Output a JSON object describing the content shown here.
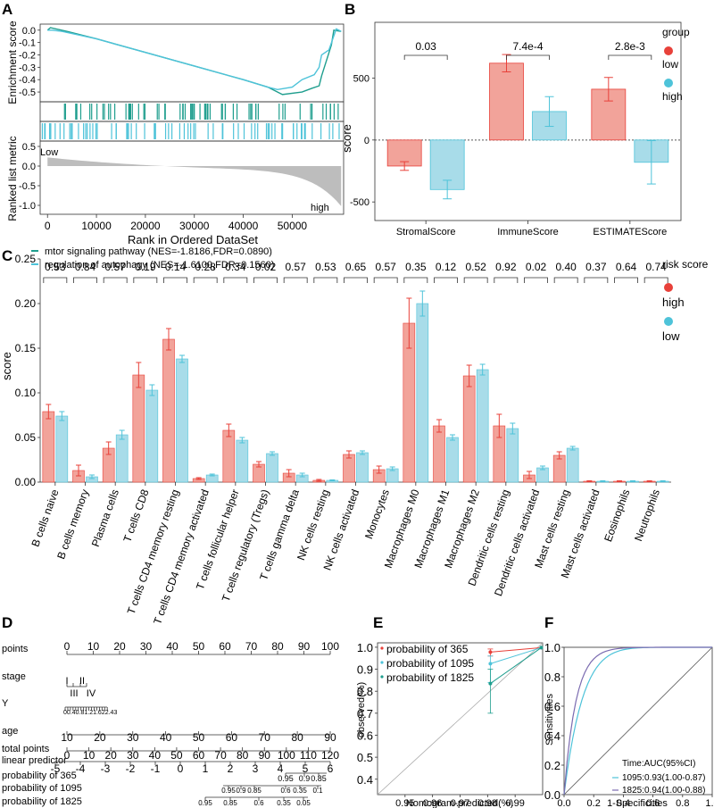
{
  "colors": {
    "high": "#ef6f62",
    "low": "#5bc4da",
    "teal": "#1f9e8e",
    "cyan": "#4ec3d9",
    "gray": "#bdbdbd",
    "red": "#e8413a"
  },
  "panel_labels": {
    "a": "A",
    "b": "B",
    "c": "C",
    "d": "D",
    "e": "E",
    "f": "F"
  },
  "chart_data": [
    {
      "id": "A",
      "type": "line",
      "title": "",
      "ylabel_top": "Enrichment score",
      "ylabel_bottom": "Ranked list metric",
      "xlabel": "Rank in Ordered DataSet",
      "es_ticks": [
        "0.0",
        "-0.1",
        "-0.2",
        "-0.3",
        "-0.4",
        "-0.5"
      ],
      "es_ylim": [
        -0.55,
        0.02
      ],
      "metric_ticks": [
        "0.5",
        "0.0",
        "-0.5",
        "-1.0"
      ],
      "x_ticks": [
        "0",
        "10000",
        "20000",
        "30000",
        "40000",
        "50000"
      ],
      "xlim": [
        -1500,
        60500
      ],
      "low_label": "Low",
      "high_label": "high",
      "series": [
        {
          "name": "mtor signaling pathway",
          "color": "teal",
          "x": [
            0,
            600,
            4000,
            10000,
            20000,
            30000,
            40000,
            45000,
            48000,
            52000,
            54000,
            55500,
            56000,
            58000,
            58500,
            60000
          ],
          "y": [
            0,
            0.02,
            -0.01,
            -0.07,
            -0.18,
            -0.29,
            -0.4,
            -0.46,
            -0.52,
            -0.5,
            -0.47,
            -0.45,
            -0.37,
            -0.12,
            0.0,
            -0.01
          ]
        },
        {
          "name": "regulation of autophagy",
          "color": "cyan",
          "x": [
            0,
            1000,
            3000,
            10000,
            20000,
            30000,
            40000,
            45000,
            47000,
            50000,
            52000,
            54500,
            55500,
            56000,
            57500,
            59000,
            60000
          ],
          "y": [
            0,
            0.0,
            -0.01,
            -0.07,
            -0.18,
            -0.29,
            -0.4,
            -0.46,
            -0.48,
            -0.46,
            -0.4,
            -0.36,
            -0.3,
            -0.2,
            -0.16,
            0.01,
            -0.01
          ]
        }
      ],
      "legend": [
        {
          "text": "mtor signaling pathway (NES=-1.8186,FDR=0.0890)",
          "color": "teal"
        },
        {
          "text": "regulation of autophagy (NES=-1.6100,FDR=0.1560)",
          "color": "cyan"
        }
      ]
    },
    {
      "id": "B",
      "type": "bar",
      "ylabel": "score",
      "yticks": [
        "500",
        "0",
        "-500"
      ],
      "ylim": [
        -650,
        950
      ],
      "categories": [
        "StromalScore",
        "ImmuneScore",
        "ESTIMATEScore"
      ],
      "pvalues": [
        "0.03",
        "7.4e-4",
        "2.8e-3"
      ],
      "series": [
        {
          "name": "low",
          "color": "high",
          "values": [
            -210,
            620,
            410
          ],
          "err": [
            35,
            70,
            95
          ]
        },
        {
          "name": "high",
          "color": "low",
          "values": [
            -400,
            230,
            -180
          ],
          "err": [
            75,
            120,
            175
          ]
        }
      ],
      "legend_title": "group",
      "legend_items": [
        {
          "label": "low",
          "color": "high"
        },
        {
          "label": "high",
          "color": "low"
        }
      ]
    },
    {
      "id": "C",
      "type": "bar",
      "ylabel": "score",
      "ylim": [
        0,
        0.25
      ],
      "yticks": [
        "0.25",
        "0.20",
        "0.15",
        "0.10",
        "0.05",
        "0.00"
      ],
      "categories": [
        "B cells naive",
        "B cells memory",
        "Plasma cells",
        "T cells CD8",
        "T cells CD4 memory resting",
        "T cells CD4 memory activated",
        "T cells follicular helper",
        "T cells regulatory (Tregs)",
        "T cells gamma delta",
        "NK cells resting",
        "NK cells activated",
        "Monocytes",
        "Macrophages M0",
        "Macrophages M1",
        "Macrophages M2",
        "Dendritic cells resting",
        "Dendritic cells activated",
        "Mast cells resting",
        "Mast cells activated",
        "Eosinophils",
        "Neutrophils"
      ],
      "pvalues": [
        "0.53",
        "0.84",
        "0.57",
        "0.19",
        "0.14",
        "0.28",
        "0.34",
        "0.02",
        "0.57",
        "0.53",
        "0.65",
        "0.57",
        "0.35",
        "0.12",
        "0.52",
        "0.92",
        "0.02",
        "0.40",
        "0.37",
        "0.64",
        "0.74"
      ],
      "series": [
        {
          "name": "high",
          "color": "high",
          "values": [
            0.079,
            0.013,
            0.038,
            0.12,
            0.16,
            0.004,
            0.058,
            0.02,
            0.01,
            0.002,
            0.031,
            0.014,
            0.178,
            0.063,
            0.119,
            0.063,
            0.008,
            0.03,
            0.001,
            0.001,
            0.001
          ],
          "err": [
            0.008,
            0.006,
            0.007,
            0.014,
            0.012,
            0.001,
            0.007,
            0.003,
            0.004,
            0.001,
            0.004,
            0.004,
            0.028,
            0.007,
            0.012,
            0.013,
            0.004,
            0.004,
            0.0005,
            0.0005,
            0.0005
          ]
        },
        {
          "name": "low",
          "color": "low",
          "values": [
            0.074,
            0.006,
            0.053,
            0.103,
            0.138,
            0.008,
            0.047,
            0.032,
            0.008,
            0.002,
            0.033,
            0.015,
            0.2,
            0.05,
            0.126,
            0.06,
            0.016,
            0.038,
            0.001,
            0.001,
            0.001
          ],
          "err": [
            0.005,
            0.002,
            0.005,
            0.006,
            0.004,
            0.001,
            0.003,
            0.002,
            0.002,
            0.0005,
            0.002,
            0.002,
            0.014,
            0.003,
            0.006,
            0.006,
            0.002,
            0.002,
            0.0005,
            0.0005,
            0.0005
          ]
        }
      ],
      "legend_title": "risk score",
      "legend_items": [
        {
          "label": "high",
          "color": "high"
        },
        {
          "label": "low",
          "color": "low"
        }
      ]
    },
    {
      "id": "D",
      "type": "nomogram",
      "rows": [
        {
          "label": "points",
          "ticks": [
            "0",
            "10",
            "20",
            "30",
            "40",
            "50",
            "60",
            "70",
            "80",
            "90",
            "100"
          ]
        },
        {
          "label": "stage",
          "ticks_top": [
            "I",
            "II"
          ],
          "ticks_bottom": [
            "III",
            "IV"
          ]
        },
        {
          "label": "Y",
          "ticks": [
            "0",
            "0.4",
            "0.8",
            "1.2",
            "1.6",
            "2",
            "2.4",
            "3"
          ]
        },
        {
          "label": "age",
          "ticks": [
            "10",
            "20",
            "30",
            "40",
            "50",
            "60",
            "70",
            "80",
            "90"
          ]
        },
        {
          "label": "total points",
          "ticks": [
            "0",
            "10",
            "20",
            "30",
            "40",
            "50",
            "60",
            "70",
            "80",
            "90",
            "100",
            "110",
            "120"
          ]
        },
        {
          "label": "linear predictor",
          "ticks": [
            "-5",
            "-4",
            "-3",
            "-2",
            "-1",
            "0",
            "1",
            "2",
            "3",
            "4",
            "5",
            "6"
          ]
        },
        {
          "label": "probability of 365",
          "ticks": [
            "0.95",
            "0.9",
            "0.85"
          ]
        },
        {
          "label": "probability of 1095",
          "ticks": [
            "0.95",
            "0.9",
            "0.85",
            "0.6",
            "0.35",
            "0.1"
          ]
        },
        {
          "label": "probability of 1825",
          "ticks": [
            "0.95",
            "0.85",
            "0.6",
            "0.35",
            "0.05"
          ]
        }
      ]
    },
    {
      "id": "E",
      "type": "line",
      "xlabel": "Nomogram-predicted(%)",
      "ylabel": "observed(%)",
      "xticks": [
        "0.95",
        "0.96",
        "0.97",
        "0.98",
        "0.99"
      ],
      "xlim": [
        0.94,
        1.0
      ],
      "yticks": [
        "1.0",
        "0.9",
        "0.8",
        "0.7",
        "0.6",
        "0.5",
        "0.4"
      ],
      "ylim": [
        0.33,
        1.02
      ],
      "series": [
        {
          "name": "probability of 365",
          "color": "red",
          "x": [
            0.981,
            0.9995
          ],
          "y": [
            0.978,
            0.998
          ]
        },
        {
          "name": "probability of 1095",
          "color": "cyan",
          "x": [
            0.981,
            0.9995
          ],
          "y": [
            0.925,
            0.998
          ]
        },
        {
          "name": "probability of 1825",
          "color": "teal",
          "x": [
            0.981,
            0.9995
          ],
          "y": [
            0.835,
            0.998
          ]
        }
      ],
      "legend": [
        "probability of 365",
        "probability of 1095",
        "probability of 1825"
      ]
    },
    {
      "id": "F",
      "type": "line",
      "xlabel": "1-Specificities",
      "ylabel": "Sensitivities",
      "xticks": [
        "0.0",
        "0.2",
        "0.4",
        "0.6",
        "0.8",
        "1.0"
      ],
      "yticks": [
        "1.0",
        "0.8",
        "0.6",
        "0.4",
        "0.2",
        "0.0"
      ],
      "legend_title": "Time:AUC(95%CI)",
      "series": [
        {
          "name": "1095:0.93(1.00-0.87)",
          "color": "cyan",
          "auc": 0.93
        },
        {
          "name": "1825:0.94(1.00-0.88)",
          "color": "#7b6bb0",
          "auc": 0.94
        }
      ]
    }
  ]
}
